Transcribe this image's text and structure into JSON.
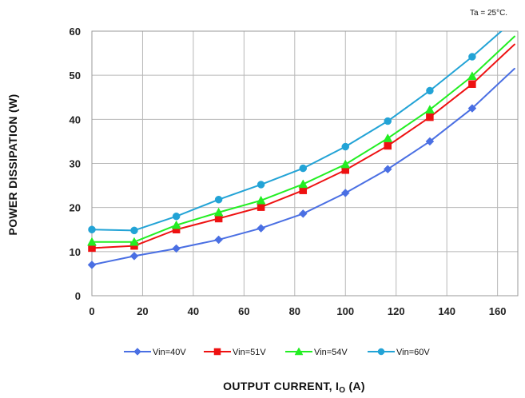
{
  "chart_data": {
    "type": "line",
    "annotation": "Ta = 25°C.",
    "ylabel": "POWER DISSIPATION (W)",
    "xlabel_main": "OUTPUT CURRENT, I",
    "xlabel_sub": "O",
    "xlabel_unit": " (A)",
    "xlim": [
      0,
      168
    ],
    "ylim": [
      0,
      60
    ],
    "x_ticks": [
      0,
      20,
      40,
      60,
      80,
      100,
      120,
      140,
      160
    ],
    "y_ticks": [
      0,
      10,
      20,
      30,
      40,
      50,
      60
    ],
    "x_tick_labels": [
      "0",
      "20",
      "40",
      "60",
      "80",
      "100",
      "120",
      "140",
      "160"
    ],
    "y_tick_labels": [
      "0",
      "10",
      "20",
      "30",
      "40",
      "50",
      "60"
    ],
    "grid": true,
    "legend_position": "bottom",
    "series": [
      {
        "name": "Vin=40V",
        "color": "#4a6fe3",
        "marker": "diamond",
        "x": [
          0,
          16.7,
          33.3,
          50,
          66.7,
          83.3,
          100,
          116.7,
          133.3,
          150
        ],
        "values": [
          7.0,
          9.0,
          10.7,
          12.7,
          15.3,
          18.6,
          23.3,
          28.7,
          35.0,
          42.5
        ],
        "extend_to": [
          166.7,
          51.5
        ]
      },
      {
        "name": "Vin=51V",
        "color": "#ee1111",
        "marker": "square",
        "x": [
          0,
          16.7,
          33.3,
          50,
          66.7,
          83.3,
          100,
          116.7,
          133.3,
          150
        ],
        "values": [
          10.8,
          11.3,
          15.0,
          17.5,
          20.1,
          23.9,
          28.5,
          34.0,
          40.5,
          48.0
        ],
        "extend_to": [
          166.7,
          57.0
        ]
      },
      {
        "name": "Vin=54V",
        "color": "#22ee22",
        "marker": "triangle",
        "x": [
          0,
          16.7,
          33.3,
          50,
          66.7,
          83.3,
          100,
          116.7,
          133.3,
          150
        ],
        "values": [
          12.2,
          12.2,
          16.0,
          18.9,
          21.6,
          25.3,
          29.8,
          35.7,
          42.2,
          49.8
        ],
        "extend_to": [
          166.7,
          58.8
        ]
      },
      {
        "name": "Vin=60V",
        "color": "#22a3d6",
        "marker": "circle",
        "x": [
          0,
          16.7,
          33.3,
          50,
          66.7,
          83.3,
          100,
          116.7,
          133.3,
          150
        ],
        "values": [
          15.0,
          14.8,
          18.0,
          21.8,
          25.2,
          28.9,
          33.8,
          39.6,
          46.5,
          54.2
        ],
        "extend_to": [
          163.5,
          61.0
        ]
      }
    ]
  }
}
